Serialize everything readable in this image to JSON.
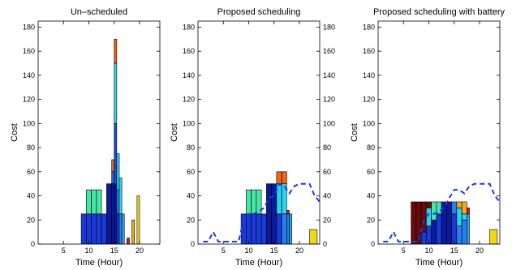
{
  "chart_data": [
    {
      "type": "bar",
      "stacked": true,
      "title": "Un–scheduled",
      "xlabel": "Time (Hour)",
      "ylabel": "Cost",
      "xlim": [
        0,
        24
      ],
      "ylim": [
        0,
        185
      ],
      "xticks": [
        5,
        10,
        15,
        20
      ],
      "yticks": [
        0,
        20,
        40,
        60,
        80,
        100,
        120,
        140,
        160,
        180
      ],
      "right_axis": false,
      "bars": [
        {
          "x": 8.5,
          "w": 1,
          "segments": [
            {
              "v": 25,
              "c": "#1a3ad8"
            }
          ]
        },
        {
          "x": 9.5,
          "w": 1,
          "segments": [
            {
              "v": 25,
              "c": "#1a3ad8"
            },
            {
              "v": 20,
              "c": "#46e6a6"
            }
          ]
        },
        {
          "x": 10.5,
          "w": 1,
          "segments": [
            {
              "v": 25,
              "c": "#1a3ad8"
            },
            {
              "v": 20,
              "c": "#46e6a6"
            }
          ]
        },
        {
          "x": 11.5,
          "w": 1,
          "segments": [
            {
              "v": 25,
              "c": "#1a3ad8"
            },
            {
              "v": 20,
              "c": "#46e6a6"
            }
          ]
        },
        {
          "x": 12.5,
          "w": 1,
          "segments": [
            {
              "v": 25,
              "c": "#1a3ad8"
            }
          ]
        },
        {
          "x": 13.5,
          "w": 1,
          "segments": [
            {
              "v": 50,
              "c": "#0a1a9a"
            }
          ]
        },
        {
          "x": 14.5,
          "w": 0.5,
          "segments": [
            {
              "v": 50,
              "c": "#0a1a9a"
            },
            {
              "v": 10,
              "c": "#2a62e0"
            },
            {
              "v": 10,
              "c": "#f06414"
            }
          ]
        },
        {
          "x": 15,
          "w": 0.5,
          "segments": [
            {
              "v": 50,
              "c": "#0a1a9a"
            },
            {
              "v": 50,
              "c": "#1b4fd8"
            },
            {
              "v": 50,
              "c": "#2ad2f0"
            },
            {
              "v": 20,
              "c": "#f06414"
            }
          ]
        },
        {
          "x": 15.5,
          "w": 0.5,
          "segments": [
            {
              "v": 25,
              "c": "#1a3ad8"
            },
            {
              "v": 20,
              "c": "#2a7ef0"
            },
            {
              "v": 30,
              "c": "#2ad2f0"
            }
          ]
        },
        {
          "x": 16,
          "w": 0.5,
          "segments": [
            {
              "v": 25,
              "c": "#2a7ef0"
            },
            {
              "v": 30,
              "c": "#2ad2f0"
            }
          ]
        },
        {
          "x": 16.5,
          "w": 0.5,
          "segments": [
            {
              "v": 25,
              "c": "#2aa6f0"
            }
          ]
        },
        {
          "x": 17.5,
          "w": 0.5,
          "segments": [
            {
              "v": 5,
              "c": "#d81818"
            }
          ]
        },
        {
          "x": 18.5,
          "w": 0.5,
          "segments": [
            {
              "v": 20,
              "c": "#f0a818"
            }
          ]
        },
        {
          "x": 19.5,
          "w": 0.5,
          "segments": [
            {
              "v": 40,
              "c": "#f0d818"
            }
          ]
        }
      ]
    },
    {
      "type": "bar",
      "stacked": true,
      "title": "Proposed scheduling",
      "xlabel": "Time (Hour)",
      "ylabel": "Cost",
      "xlim": [
        0,
        24
      ],
      "ylim": [
        0,
        185
      ],
      "xticks": [
        5,
        10,
        15,
        20
      ],
      "yticks": [
        0,
        20,
        40,
        60,
        80,
        100,
        120,
        140,
        160,
        180
      ],
      "right_axis": true,
      "right_yticks": [
        0,
        20,
        40,
        60,
        80,
        100,
        120,
        140,
        160,
        180
      ],
      "bars": [
        {
          "x": 8.5,
          "w": 1,
          "segments": [
            {
              "v": 25,
              "c": "#1a3ad8"
            }
          ]
        },
        {
          "x": 9.5,
          "w": 1,
          "segments": [
            {
              "v": 25,
              "c": "#1a3ad8"
            },
            {
              "v": 20,
              "c": "#46e6a6"
            }
          ]
        },
        {
          "x": 10.5,
          "w": 1,
          "segments": [
            {
              "v": 25,
              "c": "#1a3ad8"
            },
            {
              "v": 20,
              "c": "#46e6a6"
            }
          ]
        },
        {
          "x": 11.5,
          "w": 1,
          "segments": [
            {
              "v": 25,
              "c": "#1a3ad8"
            },
            {
              "v": 20,
              "c": "#46e6a6"
            }
          ]
        },
        {
          "x": 12.5,
          "w": 1,
          "segments": [
            {
              "v": 25,
              "c": "#1a3ad8"
            }
          ]
        },
        {
          "x": 13.5,
          "w": 1,
          "segments": [
            {
              "v": 50,
              "c": "#0a1a9a"
            }
          ]
        },
        {
          "x": 14.5,
          "w": 1,
          "segments": [
            {
              "v": 50,
              "c": "#0a1a9a"
            }
          ]
        },
        {
          "x": 15.5,
          "w": 1,
          "segments": [
            {
              "v": 25,
              "c": "#1a3ad8"
            },
            {
              "v": 25,
              "c": "#2ad2f0"
            },
            {
              "v": 10,
              "c": "#f06414"
            }
          ]
        },
        {
          "x": 16.5,
          "w": 1,
          "segments": [
            {
              "v": 25,
              "c": "#2a7ef0"
            },
            {
              "v": 25,
              "c": "#2ad2f0"
            },
            {
              "v": 10,
              "c": "#f06414"
            }
          ]
        },
        {
          "x": 17.5,
          "w": 0.5,
          "segments": [
            {
              "v": 25,
              "c": "#2a7ef0"
            },
            {
              "v": 3,
              "c": "#d81818"
            }
          ]
        },
        {
          "x": 18,
          "w": 0.5,
          "segments": [
            {
              "v": 25,
              "c": "#2aa6f0"
            }
          ]
        },
        {
          "x": 22,
          "w": 1.5,
          "segments": [
            {
              "v": 12,
              "c": "#f0d818"
            }
          ]
        }
      ],
      "line": {
        "style": "dashed",
        "color": "#1a3ae0",
        "x": [
          1,
          2,
          3,
          4,
          5,
          6,
          7,
          8,
          9,
          10,
          11,
          12,
          13,
          14,
          15,
          16,
          17,
          18,
          19,
          20,
          21,
          22,
          23,
          24
        ],
        "y": [
          2,
          2,
          10,
          2,
          2,
          2,
          2,
          2,
          20,
          25,
          25,
          27,
          30,
          38,
          40,
          50,
          48,
          42,
          48,
          50,
          50,
          50,
          40,
          35
        ]
      }
    },
    {
      "type": "bar",
      "stacked": true,
      "title": "Proposed scheduling with battery",
      "xlabel": "Time (Hour)",
      "ylabel": "Cost",
      "xlim": [
        0,
        24
      ],
      "ylim": [
        0,
        185
      ],
      "xticks": [
        5,
        10,
        15,
        20
      ],
      "yticks": [
        0,
        20,
        40,
        60,
        80,
        100,
        120,
        140,
        160,
        180
      ],
      "right_axis": false,
      "bars": [
        {
          "x": 6.5,
          "w": 1,
          "segments": [
            {
              "v": 35,
              "c": "#6a0a0a"
            }
          ]
        },
        {
          "x": 7.5,
          "w": 1,
          "segments": [
            {
              "v": 35,
              "c": "#6a0a0a"
            }
          ]
        },
        {
          "x": 8.5,
          "w": 1,
          "segments": [
            {
              "v": 10,
              "c": "#1a3ad8"
            },
            {
              "v": 25,
              "c": "#6a0a0a"
            }
          ]
        },
        {
          "x": 9.5,
          "w": 1,
          "segments": [
            {
              "v": 15,
              "c": "#1a3ad8"
            },
            {
              "v": 15,
              "c": "#2ad2f0"
            },
            {
              "v": 5,
              "c": "#6a0a0a"
            }
          ]
        },
        {
          "x": 10.5,
          "w": 1,
          "segments": [
            {
              "v": 20,
              "c": "#0a1a9a"
            },
            {
              "v": 15,
              "c": "#46e6a6"
            }
          ]
        },
        {
          "x": 11.5,
          "w": 1,
          "segments": [
            {
              "v": 25,
              "c": "#1a3ad8"
            },
            {
              "v": 10,
              "c": "#46e6a6"
            }
          ]
        },
        {
          "x": 12.5,
          "w": 1,
          "segments": [
            {
              "v": 35,
              "c": "#0a1a9a"
            }
          ]
        },
        {
          "x": 13.5,
          "w": 1,
          "segments": [
            {
              "v": 35,
              "c": "#0a1a9a"
            }
          ]
        },
        {
          "x": 14.5,
          "w": 1,
          "segments": [
            {
              "v": 25,
              "c": "#1a3ad8"
            },
            {
              "v": 10,
              "c": "#2a7ef0"
            }
          ]
        },
        {
          "x": 15.5,
          "w": 1,
          "segments": [
            {
              "v": 15,
              "c": "#2a7ef0"
            },
            {
              "v": 15,
              "c": "#2ad2f0"
            },
            {
              "v": 5,
              "c": "#f0a818"
            }
          ]
        },
        {
          "x": 16.5,
          "w": 1,
          "segments": [
            {
              "v": 20,
              "c": "#2a7ef0"
            },
            {
              "v": 5,
              "c": "#2ad2f0"
            },
            {
              "v": 10,
              "c": "#f0a818"
            }
          ]
        },
        {
          "x": 17.5,
          "w": 0.5,
          "segments": [
            {
              "v": 25,
              "c": "#2aa6f0"
            },
            {
              "v": 5,
              "c": "#d81818"
            }
          ]
        },
        {
          "x": 22,
          "w": 1.5,
          "segments": [
            {
              "v": 12,
              "c": "#f0d818"
            }
          ]
        }
      ],
      "line": {
        "style": "dashed",
        "color": "#1a3ae0",
        "x": [
          1,
          2,
          3,
          4,
          5,
          6,
          7,
          8,
          9,
          10,
          11,
          12,
          13,
          14,
          15,
          16,
          17,
          18,
          19,
          20,
          21,
          22,
          23,
          24
        ],
        "y": [
          2,
          2,
          10,
          2,
          2,
          2,
          2,
          2,
          20,
          25,
          25,
          27,
          30,
          38,
          45,
          45,
          42,
          48,
          50,
          50,
          50,
          50,
          40,
          35
        ]
      }
    }
  ]
}
